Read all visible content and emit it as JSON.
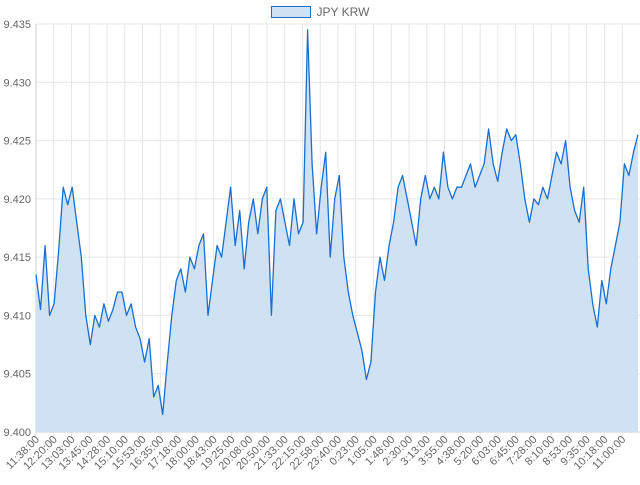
{
  "chart_data": {
    "type": "area",
    "legend": {
      "label": "JPY KRW",
      "placement": "top-center"
    },
    "colors": {
      "line": "#1a6ed0",
      "fill": "#cfe2f3",
      "grid": "#e6e6e6",
      "axis_text": "#666666"
    },
    "grid": true,
    "ylim": [
      9.4,
      9.435
    ],
    "yticks": [
      "9.400",
      "9.405",
      "9.410",
      "9.415",
      "9.420",
      "9.425",
      "9.430",
      "9.435"
    ],
    "xticks": [
      "11:38:00",
      "12:20:00",
      "13:03:00",
      "13:45:00",
      "14:28:00",
      "15:10:00",
      "15:53:00",
      "16:35:00",
      "17:18:00",
      "18:00:00",
      "18:43:00",
      "19:25:00",
      "20:08:00",
      "20:50:00",
      "21:33:00",
      "22:15:00",
      "22:58:00",
      "23:40:00",
      "0:23:00",
      "1:05:00",
      "1:48:00",
      "2:30:00",
      "3:13:00",
      "3:55:00",
      "4:38:00",
      "5:20:00",
      "6:03:00",
      "6:45:00",
      "7:28:00",
      "8:10:00",
      "8:53:00",
      "9:35:00",
      "10:18:00",
      "11:00:00"
    ],
    "series": [
      {
        "name": "JPY KRW",
        "x_start": "11:38:00",
        "x_end": "11:00:00",
        "values": [
          9.4135,
          9.4105,
          9.416,
          9.41,
          9.411,
          9.4155,
          9.421,
          9.4195,
          9.421,
          9.418,
          9.415,
          9.41,
          9.4075,
          9.41,
          9.409,
          9.411,
          9.4095,
          9.4105,
          9.412,
          9.412,
          9.41,
          9.411,
          9.409,
          9.408,
          9.406,
          9.408,
          9.403,
          9.404,
          9.4015,
          9.406,
          9.41,
          9.413,
          9.414,
          9.412,
          9.415,
          9.414,
          9.416,
          9.417,
          9.41,
          9.413,
          9.416,
          9.415,
          9.418,
          9.421,
          9.416,
          9.419,
          9.414,
          9.418,
          9.42,
          9.417,
          9.42,
          9.421,
          9.41,
          9.419,
          9.42,
          9.418,
          9.416,
          9.42,
          9.417,
          9.418,
          9.4345,
          9.423,
          9.417,
          9.421,
          9.424,
          9.415,
          9.42,
          9.422,
          9.415,
          9.412,
          9.41,
          9.4085,
          9.407,
          9.4045,
          9.406,
          9.412,
          9.415,
          9.413,
          9.416,
          9.418,
          9.421,
          9.422,
          9.42,
          9.418,
          9.416,
          9.42,
          9.422,
          9.42,
          9.421,
          9.42,
          9.424,
          9.421,
          9.42,
          9.421,
          9.421,
          9.422,
          9.423,
          9.421,
          9.422,
          9.423,
          9.426,
          9.423,
          9.4215,
          9.424,
          9.426,
          9.425,
          9.4255,
          9.423,
          9.42,
          9.418,
          9.42,
          9.4195,
          9.421,
          9.42,
          9.422,
          9.424,
          9.423,
          9.425,
          9.421,
          9.419,
          9.418,
          9.421,
          9.414,
          9.411,
          9.409,
          9.413,
          9.411,
          9.414,
          9.416,
          9.418,
          9.423,
          9.422,
          9.424,
          9.4255
        ]
      }
    ]
  }
}
